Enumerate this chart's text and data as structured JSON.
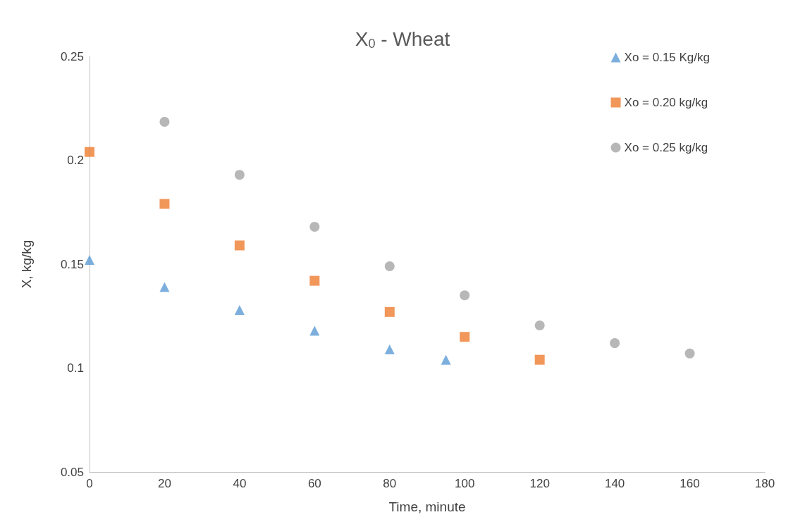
{
  "chart_data": {
    "type": "scatter",
    "title": "X$_{0}$ - Wheat",
    "xlabel": "Time, minute",
    "ylabel": "X, kg/kg",
    "series": [
      {
        "name": "Xo = 0.15 Kg/kg",
        "color": "#5b9bd5",
        "marker": "triangle",
        "x": [
          0,
          20,
          40,
          60,
          80,
          95
        ],
        "values": [
          0.152,
          0.139,
          0.128,
          0.118,
          0.109,
          0.104
        ]
      },
      {
        "name": "Xo = 0.20 kg/kg",
        "color": "#ed7d31",
        "marker": "square",
        "x": [
          0,
          20,
          40,
          60,
          80,
          100,
          120
        ],
        "values": [
          0.204,
          0.179,
          0.159,
          0.142,
          0.127,
          0.115,
          0.104
        ]
      },
      {
        "name": "Xo = 0.25 kg/kg",
        "color": "#a5a5a5",
        "marker": "circle",
        "x": [
          20,
          40,
          60,
          80,
          100,
          120,
          140,
          160
        ],
        "values": [
          0.2185,
          0.193,
          0.168,
          0.149,
          0.135,
          0.1205,
          0.112,
          0.107
        ]
      }
    ],
    "xlim": [
      0,
      180
    ],
    "xticks": [
      0,
      20,
      40,
      60,
      80,
      100,
      120,
      140,
      160,
      180
    ],
    "ylim": [
      0.05,
      0.25
    ],
    "yticks": [
      0.05,
      0.1,
      0.15,
      0.2,
      0.25
    ],
    "grid": false,
    "legend": "top right"
  }
}
